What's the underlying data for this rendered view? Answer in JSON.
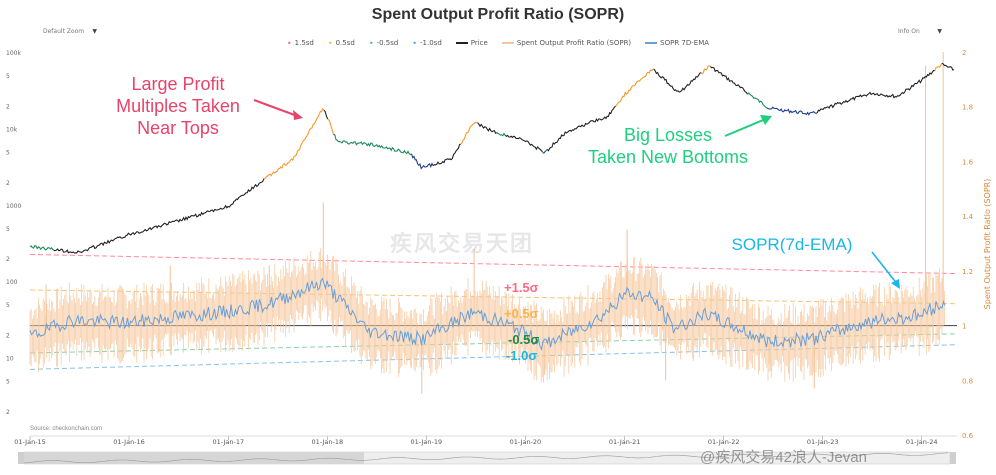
{
  "title": "Spent Output Profit Ratio (SOPR)",
  "controls": {
    "zoom": "Default Zoom",
    "info": "Info On"
  },
  "legend": [
    {
      "label": "1.5sd",
      "color": "#ff6b7f",
      "kind": "dot"
    },
    {
      "label": "0.5sd",
      "color": "#f5b74c",
      "kind": "dot"
    },
    {
      "label": "-0.5sd",
      "color": "#4cc28a",
      "kind": "dot"
    },
    {
      "label": "-1.0sd",
      "color": "#4aa3e8",
      "kind": "dot"
    },
    {
      "label": "Price",
      "color": "#222222",
      "kind": "line"
    },
    {
      "label": "Spent Output Profit Ratio (SOPR)",
      "color": "#f5c69a",
      "kind": "line"
    },
    {
      "label": "SOPR 7D-EMA",
      "color": "#6a9fd8",
      "kind": "line"
    }
  ],
  "annotations": {
    "profit": [
      "Large Profit",
      "Multiples Taken",
      "Near Tops"
    ],
    "losses": [
      "Big Losses",
      "Taken New Bottoms"
    ],
    "ema": "SOPR(7d-EMA)",
    "band_plus_1_5": "+1.5σ",
    "band_plus_0_5": "+0.5σ",
    "band_minus_0_5": "-0.5σ",
    "band_minus_1_0": "-1.0σ"
  },
  "source": "Source: checkonchain.com",
  "watermarks": {
    "mid": "疾风交易天团",
    "bottom": "@疾风交易42浪人-Jevan"
  },
  "colors": {
    "price": "#222222",
    "price_profit": "#f59a2a",
    "price_loss_green": "#1e8a5a",
    "price_loss_blue": "#1f3f8a",
    "sopr": "#f5c69a",
    "ema": "#6a9fd8",
    "band_p15": "#ff8a9a",
    "band_p05": "#f5c47a",
    "band_m05": "#8ad0a8",
    "band_m10": "#8ac0ea",
    "baseline": "#555555"
  },
  "chart_data": {
    "type": "line",
    "title": "Spent Output Profit Ratio (SOPR)",
    "x_ticks": [
      "01-Jan-15",
      "01-Jan-16",
      "01-Jan-17",
      "01-Jan-18",
      "01-Jan-19",
      "01-Jan-20",
      "01-Jan-21",
      "01-Jan-22",
      "01-Jan-23",
      "01-Jan-24"
    ],
    "y_left": {
      "scale": "log",
      "ticks": [
        "100k",
        "5",
        "2",
        "10k",
        "5",
        "2",
        "1000",
        "5",
        "2",
        "100",
        "5",
        "2",
        "10",
        "5",
        "2"
      ]
    },
    "y_right": {
      "label": "Spent Output Profit Ratio (SOPR)",
      "ylim": [
        0.6,
        2.0
      ],
      "ticks": [
        "2",
        "1.8",
        "1.6",
        "1.4",
        "1.2",
        "1",
        "0.8",
        "0.6"
      ]
    },
    "baseline": 1.0,
    "price_series": {
      "name": "Price",
      "x": [
        "2015-01-01",
        "2015-07-01",
        "2016-01-01",
        "2016-07-01",
        "2017-01-01",
        "2017-06-01",
        "2017-09-01",
        "2017-12-17",
        "2018-02-06",
        "2018-06-01",
        "2018-11-01",
        "2018-12-15",
        "2019-04-01",
        "2019-06-26",
        "2019-09-01",
        "2020-01-01",
        "2020-03-12",
        "2020-06-01",
        "2020-11-01",
        "2021-01-01",
        "2021-04-14",
        "2021-07-20",
        "2021-11-10",
        "2022-06-18",
        "2022-11-21",
        "2023-03-01",
        "2023-07-01",
        "2023-10-01",
        "2024-01-01",
        "2024-03-14",
        "2024-05-01"
      ],
      "y": [
        300,
        250,
        430,
        650,
        1000,
        2500,
        4300,
        19500,
        7000,
        6500,
        5000,
        3200,
        4100,
        12500,
        9500,
        7200,
        5000,
        9500,
        15000,
        29000,
        63000,
        30000,
        68000,
        19000,
        16000,
        22000,
        30000,
        27000,
        44000,
        71000,
        60000
      ]
    },
    "sopr_ema_series": {
      "name": "SOPR 7D-EMA",
      "x": [
        "2015-01-01",
        "2015-06-01",
        "2016-01-01",
        "2016-06-01",
        "2017-01-01",
        "2017-06-01",
        "2017-12-17",
        "2018-06-01",
        "2018-12-15",
        "2019-06-26",
        "2019-12-01",
        "2020-03-12",
        "2020-10-01",
        "2021-01-10",
        "2021-04-14",
        "2021-07-01",
        "2021-11-01",
        "2022-06-18",
        "2022-11-21",
        "2023-06-01",
        "2024-01-01",
        "2024-03-14",
        "2024-05-01"
      ],
      "y": [
        0.96,
        1.02,
        1.01,
        1.03,
        1.05,
        1.08,
        1.16,
        0.98,
        0.95,
        1.05,
        0.99,
        0.93,
        1.03,
        1.12,
        1.1,
        0.99,
        1.04,
        0.94,
        0.95,
        1.01,
        1.04,
        1.08,
        1.02
      ]
    },
    "sopr_spikes": {
      "name": "Spent Output Profit Ratio (SOPR)",
      "x": [
        "2015-03-01",
        "2016-06-01",
        "2017-06-01",
        "2017-12-17",
        "2018-12-15",
        "2019-06-26",
        "2020-03-12",
        "2021-01-10",
        "2021-06-01",
        "2022-06-18",
        "2022-12-01",
        "2024-01-15",
        "2024-03-20"
      ],
      "y": [
        1.15,
        1.22,
        1.22,
        1.45,
        0.75,
        1.28,
        0.82,
        1.35,
        0.8,
        0.86,
        0.77,
        1.95,
        2.0
      ]
    },
    "bands": [
      {
        "name": "1.5sd",
        "start": 1.26,
        "end": 1.19
      },
      {
        "name": "0.5sd",
        "start": 1.13,
        "end": 1.08
      },
      {
        "name": "-0.5sd",
        "start": 0.9,
        "end": 0.97
      },
      {
        "name": "-1.0sd",
        "start": 0.84,
        "end": 0.93
      }
    ]
  }
}
